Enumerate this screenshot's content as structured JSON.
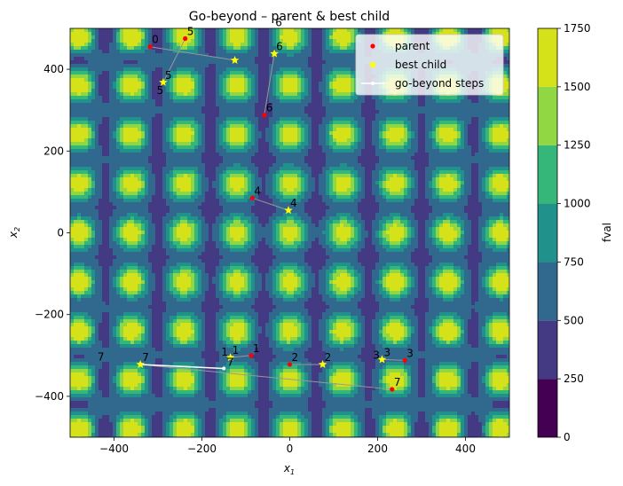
{
  "chart_data": {
    "type": "scatter",
    "title": "Go-beyond – parent & best child",
    "xlabel_main": "x",
    "xlabel_sub": "1",
    "ylabel_main": "x",
    "ylabel_sub": "2",
    "xlim": [
      -500,
      500
    ],
    "ylim": [
      -500,
      500
    ],
    "xticks": [
      -400,
      -200,
      0,
      200,
      400
    ],
    "yticks": [
      -400,
      -200,
      0,
      200,
      400
    ],
    "xtick_labels": [
      "−400",
      "−200",
      "0",
      "200",
      "400"
    ],
    "ytick_labels": [
      "−400",
      "−200",
      "0",
      "200",
      "400"
    ],
    "background": {
      "kind": "filled contour",
      "colormap": "viridis",
      "period": 120,
      "colors": [
        "#440154",
        "#443983",
        "#31688e",
        "#21918c",
        "#35b779",
        "#90d743",
        "#d5e21a"
      ]
    },
    "colorbar": {
      "label": "fval",
      "levels": [
        0,
        250,
        500,
        750,
        1000,
        1250,
        1500,
        1750
      ],
      "tick_labels": [
        "0",
        "250",
        "500",
        "750",
        "1000",
        "1250",
        "1500",
        "1750"
      ]
    },
    "legend": {
      "position": "top-right",
      "entries": [
        {
          "label": "parent",
          "marker": "dot",
          "color": "#ff0000"
        },
        {
          "label": "best child",
          "marker": "star",
          "color": "#ffff00"
        },
        {
          "label": "go-beyond steps",
          "marker": "line",
          "color": "#ffffff"
        }
      ]
    },
    "series": [
      {
        "name": "parent",
        "color": "#ff0000",
        "points": [
          {
            "x": -318,
            "y": 455,
            "label": "0"
          },
          {
            "x": -238,
            "y": 475,
            "label": "5"
          },
          {
            "x": -88,
            "y": -300,
            "label": "1"
          },
          {
            "x": 0,
            "y": -322,
            "label": "2"
          },
          {
            "x": 262,
            "y": -312,
            "label": "3"
          },
          {
            "x": -85,
            "y": 85,
            "label": "4"
          },
          {
            "x": -58,
            "y": 288,
            "label": "6"
          },
          {
            "x": 233,
            "y": -383,
            "label": "7"
          }
        ]
      },
      {
        "name": "best child",
        "color": "#ffff00",
        "points": [
          {
            "x": -288,
            "y": 368,
            "label": "5"
          },
          {
            "x": -125,
            "y": 422,
            "label": ""
          },
          {
            "x": -35,
            "y": 438,
            "label": "6"
          },
          {
            "x": -3,
            "y": 55,
            "label": "4"
          },
          {
            "x": 75,
            "y": -322,
            "label": "2"
          },
          {
            "x": 210,
            "y": -310,
            "label": "3"
          },
          {
            "x": -135,
            "y": -305,
            "label": "1"
          },
          {
            "x": -340,
            "y": -322,
            "label": "7"
          }
        ]
      }
    ],
    "connections": [
      {
        "from": [
          -318,
          455
        ],
        "to": [
          -125,
          422
        ]
      },
      {
        "from": [
          -238,
          475
        ],
        "to": [
          -288,
          368
        ]
      },
      {
        "from": [
          -58,
          288
        ],
        "to": [
          -35,
          438
        ]
      },
      {
        "from": [
          -85,
          85
        ],
        "to": [
          -3,
          55
        ]
      },
      {
        "from": [
          -88,
          -300
        ],
        "to": [
          -135,
          -305
        ]
      },
      {
        "from": [
          0,
          -322
        ],
        "to": [
          75,
          -322
        ]
      },
      {
        "from": [
          262,
          -312
        ],
        "to": [
          210,
          -310
        ]
      },
      {
        "from": [
          233,
          -383
        ],
        "to": [
          -340,
          -322
        ]
      }
    ],
    "go_beyond_steps": [
      {
        "x": -340,
        "y": -322
      },
      {
        "x": -150,
        "y": -332
      }
    ],
    "extra_labels": [
      {
        "x": -295,
        "y": 340,
        "text": "5"
      },
      {
        "x": -25,
        "y": 505,
        "text": "6"
      },
      {
        "x": -430,
        "y": -312,
        "text": "7"
      },
      {
        "x": -148,
        "y": -300,
        "text": "1"
      },
      {
        "x": -135,
        "y": -325,
        "text": "7"
      },
      {
        "x": 197,
        "y": -308,
        "text": "3"
      }
    ]
  }
}
